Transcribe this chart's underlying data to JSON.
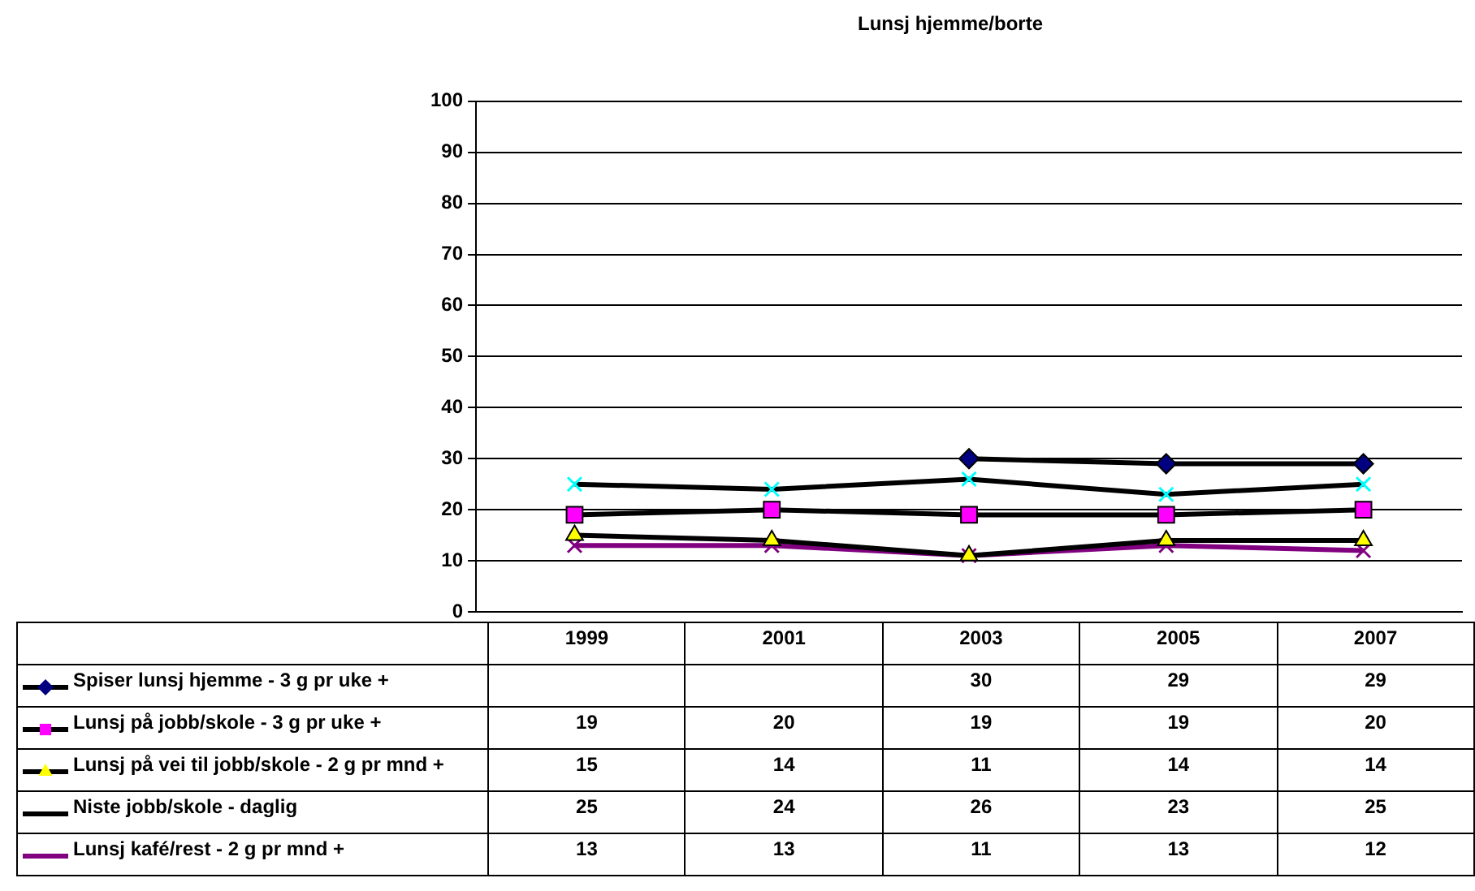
{
  "chart_data": {
    "type": "line",
    "title": "Lunsj hjemme/borte",
    "categories": [
      "1999",
      "2001",
      "2003",
      "2005",
      "2007"
    ],
    "series": [
      {
        "name": "Spiser lunsj hjemme - 3 g pr uke +",
        "color": "#000080",
        "marker": "diamond",
        "values": [
          null,
          null,
          30,
          29,
          29
        ]
      },
      {
        "name": "Lunsj på jobb/skole - 3 g pr uke +",
        "color": "#ff00ff",
        "marker": "square",
        "values": [
          19,
          20,
          19,
          19,
          20
        ]
      },
      {
        "name": "Lunsj på vei til jobb/skole - 2 g pr mnd +",
        "color": "#ffff00",
        "marker": "triangle",
        "values": [
          15,
          14,
          11,
          14,
          14
        ]
      },
      {
        "name": "Niste jobb/skole - daglig",
        "color": "#00ffff",
        "marker": "cross",
        "values": [
          25,
          24,
          26,
          23,
          25
        ]
      },
      {
        "name": "Lunsj kafé/rest - 2 g pr mnd +",
        "color": "#800080",
        "marker": "cross",
        "values": [
          13,
          13,
          11,
          13,
          12
        ]
      }
    ],
    "ylim": [
      0,
      100
    ],
    "yticks": [
      0,
      10,
      20,
      30,
      40,
      50,
      60,
      70,
      80,
      90,
      100
    ],
    "grid": "y",
    "legend": "bottom",
    "data_labels": true,
    "line_style": "solid"
  }
}
